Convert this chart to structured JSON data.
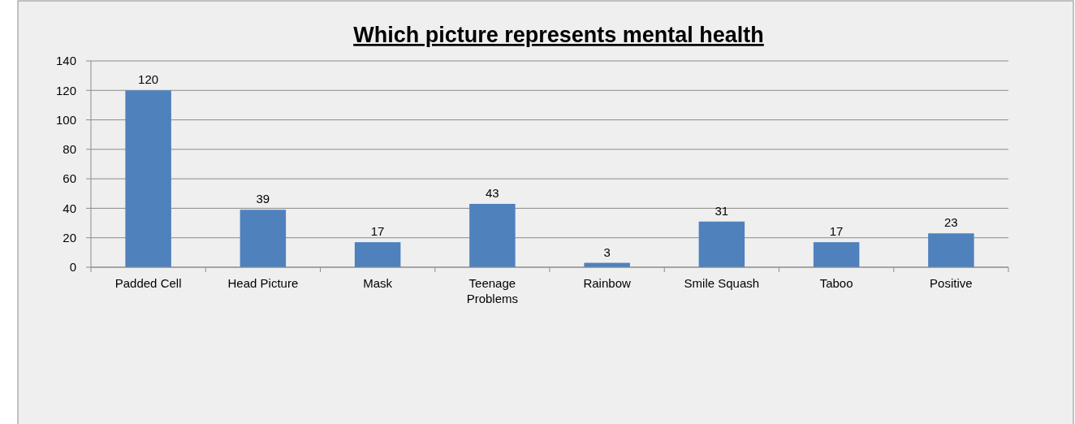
{
  "chart_data": {
    "type": "bar",
    "title": "Which picture represents mental health",
    "categories": [
      "Padded Cell",
      "Head Picture",
      "Mask",
      "Teenage Problems",
      "Rainbow",
      "Smile Squash",
      "Taboo",
      "Positive"
    ],
    "values": [
      120,
      39,
      17,
      43,
      3,
      31,
      17,
      23
    ],
    "color": "#4f81bd",
    "ylim": [
      0,
      140
    ],
    "yticks": [
      0,
      20,
      40,
      60,
      80,
      100,
      120,
      140
    ],
    "grid": "y",
    "data_labels": true
  }
}
